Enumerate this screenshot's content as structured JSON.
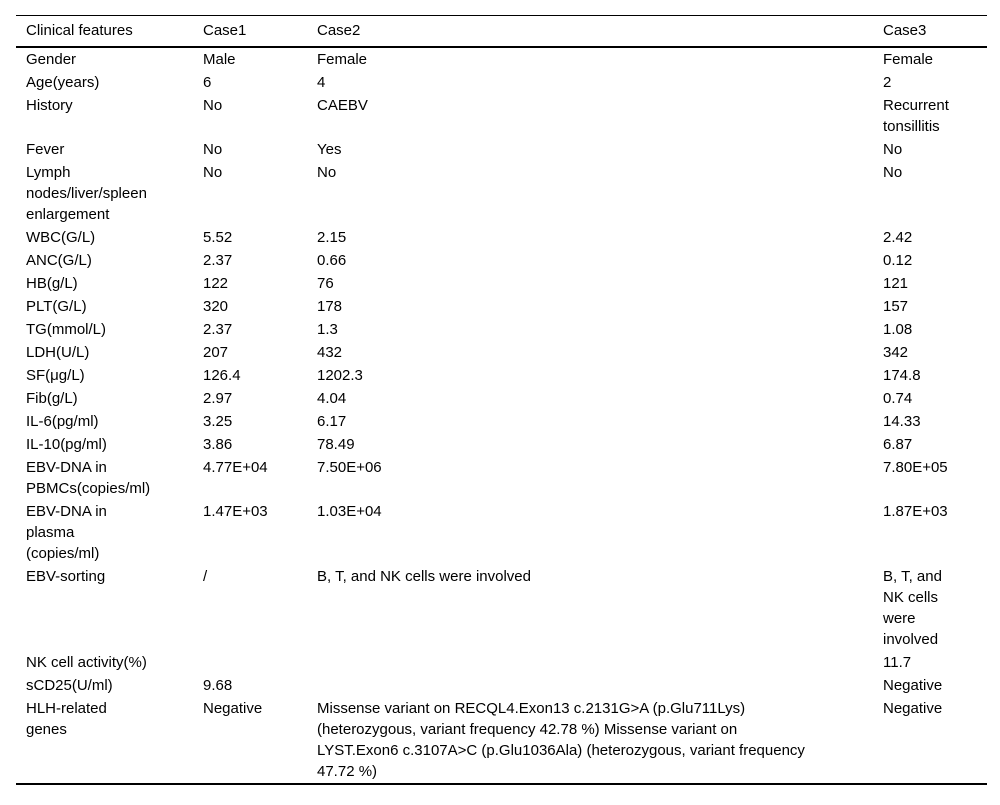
{
  "table": {
    "columns": [
      "Clinical features",
      "Case1",
      "Case2",
      "Case3"
    ],
    "rows": [
      {
        "feature": "Gender",
        "case1": "Male",
        "case2": "Female",
        "case3": "Female"
      },
      {
        "feature": "Age(years)",
        "case1": "6",
        "case2": "4",
        "case3": "2"
      },
      {
        "feature": "History",
        "case1": "No",
        "case2": "CAEBV",
        "case3": "Recurrent\ntonsillitis"
      },
      {
        "feature": "Fever",
        "case1": "No",
        "case2": "Yes",
        "case3": "No"
      },
      {
        "feature": "Lymph\nnodes/liver/spleen\nenlargement",
        "case1": "No",
        "case2": "No",
        "case3": "No"
      },
      {
        "feature": "WBC(G/L)",
        "case1": "5.52",
        "case2": "2.15",
        "case3": "2.42"
      },
      {
        "feature": "ANC(G/L)",
        "case1": "2.37",
        "case2": "0.66",
        "case3": "0.12"
      },
      {
        "feature": "HB(g/L)",
        "case1": "122",
        "case2": "76",
        "case3": "121"
      },
      {
        "feature": "PLT(G/L)",
        "case1": "320",
        "case2": "178",
        "case3": "157"
      },
      {
        "feature": "TG(mmol/L)",
        "case1": "2.37",
        "case2": "1.3",
        "case3": "1.08"
      },
      {
        "feature": "LDH(U/L)",
        "case1": "207",
        "case2": "432",
        "case3": "342"
      },
      {
        "feature": "SF(μg/L)",
        "case1": "126.4",
        "case2": "1202.3",
        "case3": "174.8"
      },
      {
        "feature": "Fib(g/L)",
        "case1": "2.97",
        "case2": "4.04",
        "case3": "0.74"
      },
      {
        "feature": "IL-6(pg/ml)",
        "case1": "3.25",
        "case2": "6.17",
        "case3": "14.33"
      },
      {
        "feature": "IL-10(pg/ml)",
        "case1": "3.86",
        "case2": "78.49",
        "case3": "6.87"
      },
      {
        "feature": "EBV-DNA in\nPBMCs(copies/ml)",
        "case1": "4.77E+04",
        "case2": "7.50E+06",
        "case3": "7.80E+05"
      },
      {
        "feature": "EBV-DNA in\nplasma\n(copies/ml)",
        "case1": "1.47E+03",
        "case2": "1.03E+04",
        "case3": "1.87E+03"
      },
      {
        "feature": "EBV-sorting",
        "case1": "/",
        "case2": "B, T, and NK cells were involved",
        "case3": "B, T, and\nNK cells\nwere\ninvolved"
      },
      {
        "feature": "NK cell activity(%)",
        "case1": "",
        "case2": "",
        "case3": "11.7"
      },
      {
        "feature": "sCD25(U/ml)",
        "case1": "9.68",
        "case2": "",
        "case3": "Negative"
      },
      {
        "feature": "HLH-related\ngenes",
        "case1": "Negative",
        "case2": "Missense variant on RECQL4.Exon13 c.2131G>A (p.Glu711Lys)\n(heterozygous, variant frequency 42.78 %) Missense variant on\nLYST.Exon6 c.3107A>C (p.Glu1036Ala) (heterozygous, variant frequency\n47.72 %)",
        "case3": "Negative"
      }
    ]
  }
}
